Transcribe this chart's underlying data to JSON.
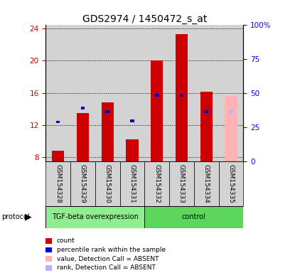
{
  "title": "GDS2974 / 1450472_s_at",
  "samples": [
    "GSM154328",
    "GSM154329",
    "GSM154330",
    "GSM154331",
    "GSM154332",
    "GSM154333",
    "GSM154334",
    "GSM154335"
  ],
  "red_values": [
    8.8,
    13.5,
    14.8,
    10.2,
    20.0,
    23.3,
    16.1,
    null
  ],
  "blue_values": [
    12.2,
    13.9,
    13.5,
    12.3,
    15.5,
    15.5,
    13.5,
    null
  ],
  "pink_value": 15.6,
  "lightblue_value": 13.5,
  "absent_sample_idx": 7,
  "ylim_left": [
    7.5,
    24.5
  ],
  "ylim_right": [
    0,
    100
  ],
  "yticks_left": [
    8,
    12,
    16,
    20,
    24
  ],
  "yticks_right": [
    0,
    25,
    50,
    75,
    100
  ],
  "ytick_labels_right": [
    "0",
    "25",
    "50",
    "75",
    "100%"
  ],
  "group1_label": "TGF-beta overexpression",
  "group2_label": "control",
  "group1_indices": [
    0,
    1,
    2,
    3
  ],
  "group2_indices": [
    4,
    5,
    6,
    7
  ],
  "legend_items": [
    {
      "color": "#cc0000",
      "label": "count"
    },
    {
      "color": "#0000cc",
      "label": "percentile rank within the sample"
    },
    {
      "color": "#ffb3b3",
      "label": "value, Detection Call = ABSENT"
    },
    {
      "color": "#b3b3ff",
      "label": "rank, Detection Call = ABSENT"
    }
  ],
  "bar_width": 0.5,
  "red_color": "#cc0000",
  "blue_color": "#0000cc",
  "pink_color": "#ffb3b3",
  "lightblue_color": "#b3b3ff",
  "bg_color": "#d3d3d3",
  "group1_bg": "#90ee90",
  "group2_bg": "#5cd65c",
  "plot_bg": "#ffffff",
  "title_fontsize": 10,
  "tick_fontsize": 7.5,
  "label_fontsize": 7
}
